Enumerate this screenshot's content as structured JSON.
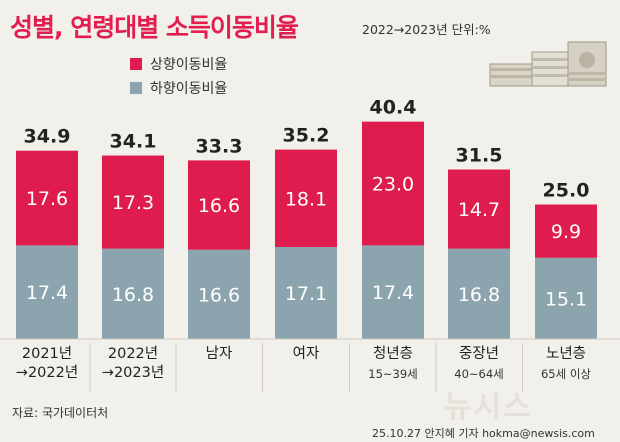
{
  "header": {
    "title": "성별, 연령대별 소득이동비율",
    "unit": "2022→2023년 단위:%"
  },
  "colors": {
    "up": "#de1c4d",
    "down": "#8ca4ae",
    "background": "#f2f0ea"
  },
  "chart_data": {
    "type": "bar",
    "stacked": true,
    "title": "성별, 연령대별 소득이동비율",
    "unit": "%",
    "categories": [
      "2021년→2022년",
      "2022년→2023년",
      "남자",
      "여자",
      "청년층",
      "중장년",
      "노년층"
    ],
    "category_lines": [
      [
        "2021년",
        "→2022년"
      ],
      [
        "2022년",
        "→2023년"
      ],
      [
        "남자"
      ],
      [
        "여자"
      ],
      [
        "청년층"
      ],
      [
        "중장년"
      ],
      [
        "노년층"
      ]
    ],
    "sublabels": [
      "",
      "",
      "",
      "",
      "15~39세",
      "40~64세",
      "65세 이상"
    ],
    "series": [
      {
        "name": "하향이동비율",
        "values": [
          17.4,
          16.8,
          16.6,
          17.1,
          17.4,
          16.8,
          15.1
        ]
      },
      {
        "name": "상향이동비율",
        "values": [
          17.6,
          17.3,
          16.6,
          18.1,
          23.0,
          14.7,
          9.9
        ]
      }
    ],
    "totals": [
      34.9,
      34.1,
      33.3,
      35.2,
      40.4,
      31.5,
      25.0
    ],
    "legend": [
      "상향이동비율",
      "하향이동비율"
    ],
    "ylim": [
      0,
      40.4
    ]
  },
  "footer": {
    "source": "자료: 국가데이터처",
    "credit": "25.10.27 안지혜 기자 hokma@newsis.com",
    "watermark": "뉴시스"
  }
}
